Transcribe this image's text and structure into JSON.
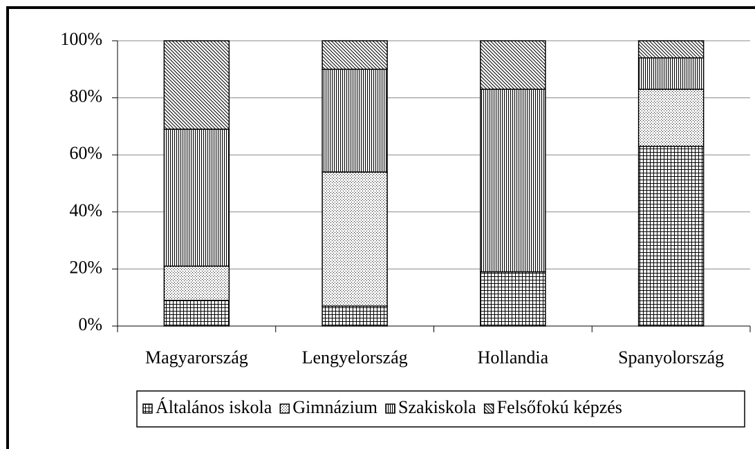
{
  "chart_data": {
    "type": "stacked_bar",
    "categories": [
      "Magyarország",
      "Lengyelország",
      "Hollandia",
      "Spanyolország"
    ],
    "series": [
      {
        "name": "Általános iskola",
        "color": "#000000",
        "pattern": "grid",
        "values": [
          9,
          7,
          19,
          63
        ]
      },
      {
        "name": "Gimnázium",
        "color": "#000000",
        "pattern": "dots",
        "values": [
          12,
          47,
          0,
          20
        ]
      },
      {
        "name": "Szakiskola",
        "color": "#000000",
        "pattern": "vertical",
        "values": [
          48,
          36,
          64,
          11
        ]
      },
      {
        "name": "Felsőfokú képzés",
        "color": "#000000",
        "pattern": "diagonal",
        "values": [
          31,
          10,
          17,
          6
        ]
      }
    ],
    "ylim": [
      0,
      100
    ],
    "yticks": [
      {
        "value": 0,
        "label": "0%"
      },
      {
        "value": 20,
        "label": "20%"
      },
      {
        "value": 40,
        "label": "40%"
      },
      {
        "value": 60,
        "label": "60%"
      },
      {
        "value": 80,
        "label": "80%"
      },
      {
        "value": 100,
        "label": "100%"
      }
    ],
    "grid": true,
    "legend": "bottom"
  }
}
